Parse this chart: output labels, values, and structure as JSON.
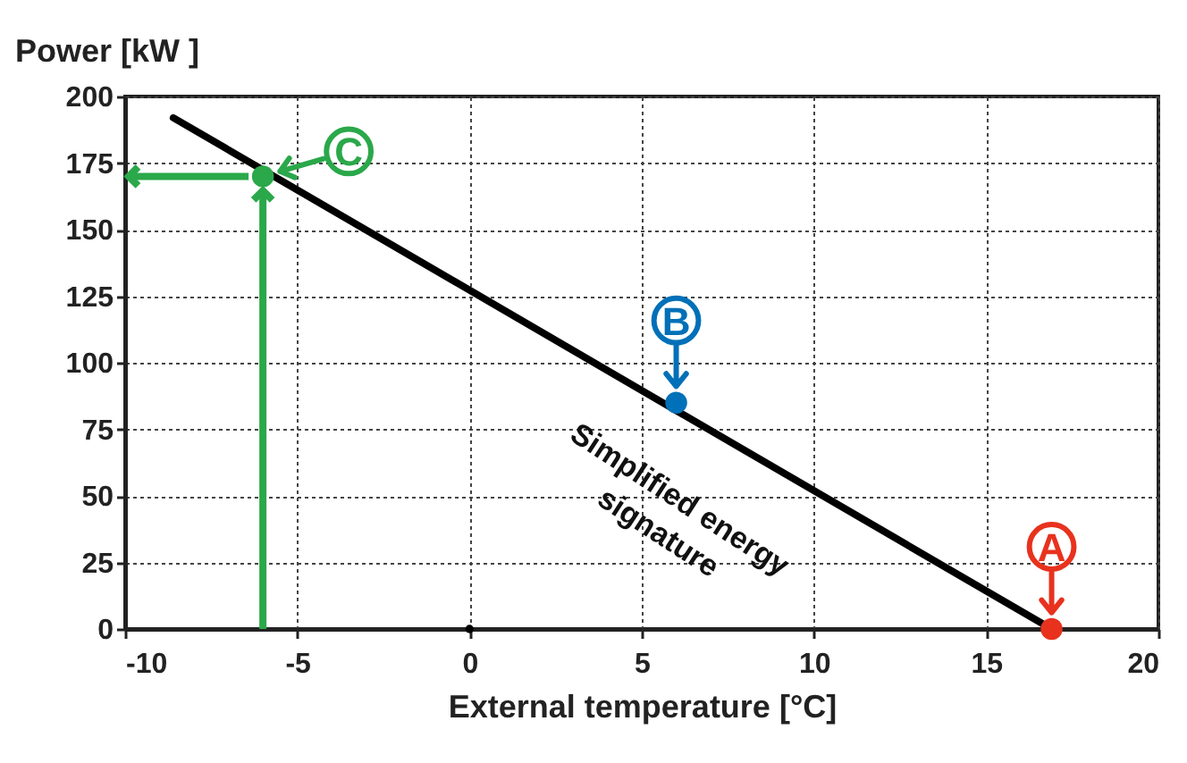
{
  "chart_data": {
    "type": "line",
    "xlabel": "External temperature [°C]",
    "ylabel": "Power [kW ]",
    "xlim": [
      -10,
      20
    ],
    "xticks": [
      -10,
      -5,
      0,
      5,
      10,
      15,
      20
    ],
    "ylim": [
      0,
      200
    ],
    "yticks": [
      0,
      25,
      50,
      75,
      100,
      125,
      150,
      175,
      200
    ],
    "grid": true,
    "series": [
      {
        "color": "#000000",
        "x": [
          -8.6,
          16.9
        ],
        "values": [
          192,
          0
        ]
      },
      {
        "type": "scatter",
        "name": "A",
        "color": "#e8321e",
        "x": [
          16.9
        ],
        "values": [
          0
        ]
      },
      {
        "type": "scatter",
        "name": "B",
        "color": "#0070b8",
        "x": [
          6
        ],
        "values": [
          85
        ]
      },
      {
        "type": "scatter",
        "name": "C",
        "color": "#2aa84a",
        "x": [
          -6
        ],
        "values": [
          170
        ]
      },
      {
        "type": "scatter",
        "color": "#000000",
        "x": [
          0
        ],
        "values": [
          0
        ]
      }
    ],
    "ref_lines": [
      {
        "axis": "x",
        "value": -6,
        "color": "#2aa84a"
      },
      {
        "axis": "y",
        "value": 170,
        "color": "#2aa84a"
      }
    ],
    "annotations": [
      "Simplified energy\nsignature"
    ]
  }
}
